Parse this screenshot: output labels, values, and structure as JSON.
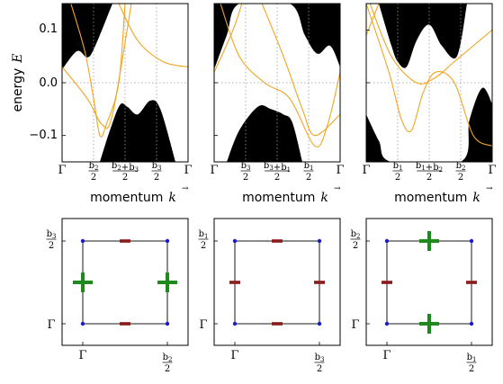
{
  "chart_data": [
    {
      "type": "line",
      "panel": "top-left",
      "ylabel": "energy  E",
      "xlabel": "momentum  k",
      "y_ticks": [
        "0.1",
        "0.0",
        "−0.1"
      ],
      "ylim": [
        -0.15,
        0.15
      ],
      "x_ticks": [
        "Γ",
        "b2/2",
        "(b2+b3)/2",
        "b3/2",
        "Γ"
      ],
      "upper_band_edge": [
        [
          0,
          0.025
        ],
        [
          0.12,
          0.06
        ],
        [
          0.2,
          0.048
        ],
        [
          0.26,
          0.068
        ],
        [
          0.4,
          0.15
        ]
      ],
      "lower_band_edge": [
        [
          0.3,
          -0.15
        ],
        [
          0.38,
          -0.09
        ],
        [
          0.46,
          -0.042
        ],
        [
          0.52,
          -0.046
        ],
        [
          0.6,
          -0.06
        ],
        [
          0.7,
          -0.034
        ],
        [
          0.78,
          -0.05
        ],
        [
          0.9,
          -0.15
        ]
      ],
      "orange_curves": [
        [
          [
            0,
            0.03
          ],
          [
            0.2,
            -0.03
          ],
          [
            0.32,
            -0.08
          ],
          [
            0.4,
            -0.06
          ],
          [
            0.55,
            0.15
          ]
        ],
        [
          [
            0.07,
            0.15
          ],
          [
            0.18,
            0.06
          ],
          [
            0.25,
            -0.03
          ],
          [
            0.3,
            -0.1
          ],
          [
            0.35,
            -0.08
          ],
          [
            0.45,
            0.0
          ],
          [
            0.5,
            0.15
          ]
        ],
        [
          [
            0.45,
            0.15
          ],
          [
            0.6,
            0.08
          ],
          [
            0.8,
            0.04
          ],
          [
            1,
            0.03
          ]
        ]
      ]
    },
    {
      "type": "line",
      "panel": "top-middle",
      "xlabel": "momentum  k",
      "x_ticks": [
        "Γ",
        "b3/2",
        "(b3+b1)/2",
        "b1/2",
        "Γ"
      ],
      "ylim": [
        -0.15,
        0.15
      ],
      "upper_band_edge": [
        [
          0,
          0.025
        ],
        [
          0.1,
          0.09
        ],
        [
          0.2,
          0.15
        ],
        [
          0.6,
          0.15
        ],
        [
          0.72,
          0.09
        ],
        [
          0.82,
          0.055
        ],
        [
          0.92,
          0.07
        ],
        [
          1,
          0.03
        ]
      ],
      "lower_band_edge": [
        [
          0.1,
          -0.15
        ],
        [
          0.2,
          -0.09
        ],
        [
          0.35,
          -0.045
        ],
        [
          0.45,
          -0.05
        ],
        [
          0.55,
          -0.06
        ],
        [
          0.62,
          -0.075
        ],
        [
          0.7,
          -0.15
        ]
      ],
      "orange_curves": [
        [
          [
            0,
            0.02
          ],
          [
            0.15,
            0.1
          ],
          [
            0.22,
            0.15
          ]
        ],
        [
          [
            0.05,
            0.15
          ],
          [
            0.2,
            0.05
          ],
          [
            0.4,
            0.0
          ],
          [
            0.6,
            -0.03
          ],
          [
            0.8,
            -0.12
          ],
          [
            0.9,
            -0.08
          ],
          [
            1,
            0.02
          ]
        ],
        [
          [
            0.38,
            0.15
          ],
          [
            0.55,
            0.05
          ],
          [
            0.7,
            -0.05
          ],
          [
            0.8,
            -0.1
          ],
          [
            1,
            -0.06
          ]
        ]
      ]
    },
    {
      "type": "line",
      "panel": "top-right",
      "xlabel": "momentum  k",
      "x_ticks": [
        "Γ",
        "b1/2",
        "(b1+b2)/2",
        "b2/2",
        "Γ"
      ],
      "ylim": [
        -0.15,
        0.15
      ],
      "upper_band_edge": [
        [
          0.1,
          0.15
        ],
        [
          0.2,
          0.07
        ],
        [
          0.25,
          0.04
        ],
        [
          0.32,
          0.03
        ],
        [
          0.4,
          0.08
        ],
        [
          0.5,
          0.11
        ],
        [
          0.6,
          0.07
        ],
        [
          0.72,
          0.05
        ],
        [
          0.8,
          0.15
        ]
      ],
      "lower_band_edge": [
        [
          0,
          -0.06
        ],
        [
          0.1,
          -0.11
        ],
        [
          0.2,
          -0.15
        ],
        [
          0.75,
          -0.15
        ],
        [
          0.82,
          -0.07
        ],
        [
          0.92,
          -0.01
        ],
        [
          1,
          -0.04
        ]
      ],
      "orange_curves": [
        [
          [
            0,
            0.09
          ],
          [
            0.1,
            0.15
          ]
        ],
        [
          [
            0,
            0.15
          ],
          [
            0.18,
            0.02
          ],
          [
            0.28,
            -0.07
          ],
          [
            0.36,
            -0.09
          ],
          [
            0.45,
            -0.02
          ],
          [
            0.55,
            0.02
          ],
          [
            0.7,
            0.0
          ],
          [
            0.85,
            -0.1
          ],
          [
            1,
            -0.12
          ]
        ],
        [
          [
            0.03,
            0.15
          ],
          [
            0.2,
            0.05
          ],
          [
            0.4,
            0.0
          ],
          [
            0.55,
            0.01
          ],
          [
            0.7,
            0.04
          ],
          [
            1,
            0.1
          ]
        ]
      ]
    },
    {
      "type": "scatter",
      "panel": "bottom-left",
      "x_ticks": [
        "Γ",
        "b2/2"
      ],
      "y_ticks": [
        "b3/2",
        "Γ"
      ],
      "corners": [
        [
          0,
          0
        ],
        [
          1,
          0
        ],
        [
          0,
          1
        ],
        [
          1,
          1
        ]
      ],
      "minus_markers": [
        [
          0.5,
          0
        ],
        [
          0.5,
          1
        ]
      ],
      "plus_markers": [
        [
          0,
          0.5
        ],
        [
          1,
          0.5
        ]
      ]
    },
    {
      "type": "scatter",
      "panel": "bottom-middle",
      "x_ticks": [
        "Γ",
        "b3/2"
      ],
      "y_ticks": [
        "b1/2",
        "Γ"
      ],
      "corners": [
        [
          0,
          0
        ],
        [
          1,
          0
        ],
        [
          0,
          1
        ],
        [
          1,
          1
        ]
      ],
      "minus_markers": [
        [
          0.5,
          0
        ],
        [
          0.5,
          1
        ],
        [
          0,
          0.5
        ],
        [
          1,
          0.5
        ]
      ],
      "plus_markers": []
    },
    {
      "type": "scatter",
      "panel": "bottom-right",
      "x_ticks": [
        "Γ",
        "b1/2"
      ],
      "y_ticks": [
        "b2/2",
        "Γ"
      ],
      "corners": [
        [
          0,
          0
        ],
        [
          1,
          0
        ],
        [
          0,
          1
        ],
        [
          1,
          1
        ]
      ],
      "minus_markers": [
        [
          0,
          0.5
        ],
        [
          1,
          0.5
        ]
      ],
      "plus_markers": [
        [
          0.5,
          0
        ],
        [
          0.5,
          1
        ]
      ]
    }
  ],
  "colors": {
    "band": "#000000",
    "curve": "#f0a51f",
    "minus": "#8b1a1a",
    "plus": "#1e8a1e",
    "corner": "#1a1acc"
  },
  "text": {
    "ylabel_top": "energy",
    "ylabel_var": "E",
    "xlabel_text": "momentum",
    "xlabel_var": "k",
    "ytick_pos": "0.1",
    "ytick_zero": "0.0",
    "ytick_neg": "−0.1",
    "gamma": "Γ"
  }
}
